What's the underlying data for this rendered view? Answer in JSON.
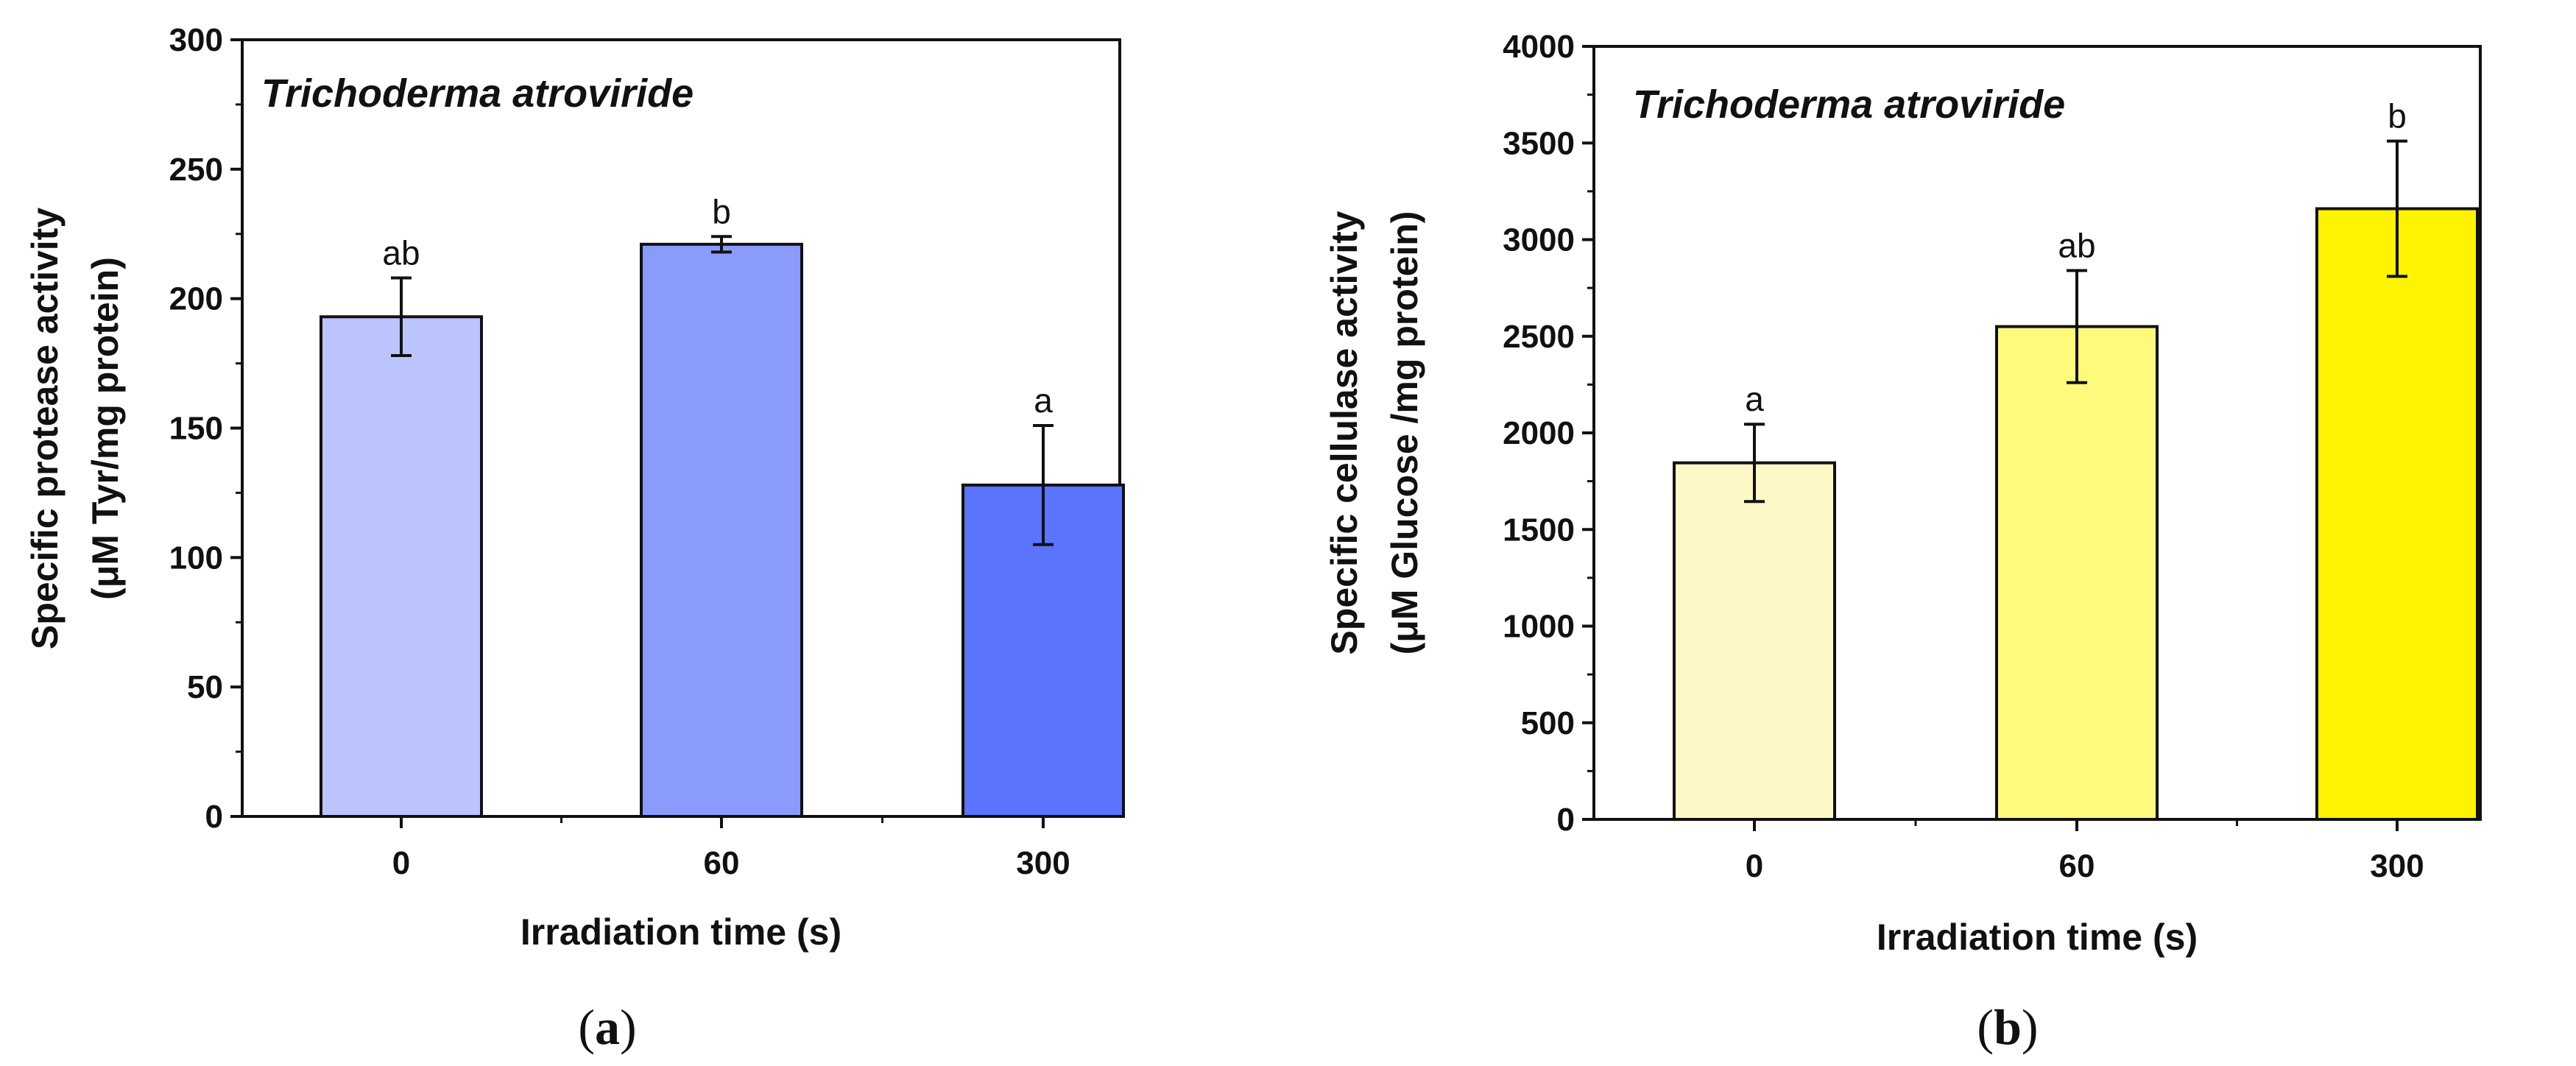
{
  "chart_data": [
    {
      "type": "bar",
      "title": "Trichoderma atroviride",
      "xlabel": "Irradiation time (s)",
      "ylabel_line1": "Specific protease activity",
      "ylabel_line2": "(μM Tyr/mg protein)",
      "ylim": [
        0,
        300
      ],
      "yticks": [
        0,
        50,
        100,
        150,
        200,
        250,
        300
      ],
      "categories": [
        "0",
        "60",
        "300"
      ],
      "values": [
        193,
        221,
        128
      ],
      "errors": [
        15,
        3,
        23
      ],
      "significance": [
        "ab",
        "b",
        "a"
      ],
      "colors": [
        "#bcc4fd",
        "#8a9bfb",
        "#5a74fd"
      ],
      "caption_label": "a"
    },
    {
      "type": "bar",
      "title": "Trichoderma atroviride",
      "xlabel": "Irradiation time (s)",
      "ylabel_line1": "Specific cellulase activity",
      "ylabel_line2": "(μM Glucose /mg protein)",
      "ylim": [
        0,
        4000
      ],
      "yticks": [
        0,
        500,
        1000,
        1500,
        2000,
        2500,
        3000,
        3500,
        4000
      ],
      "categories": [
        "0",
        "60",
        "300"
      ],
      "values": [
        1845,
        2550,
        3160
      ],
      "errors": [
        200,
        290,
        350
      ],
      "significance": [
        "a",
        "ab",
        "b"
      ],
      "colors": [
        "#fef8c7",
        "#fefb7c",
        "#fef300"
      ],
      "caption_label": "b"
    }
  ]
}
